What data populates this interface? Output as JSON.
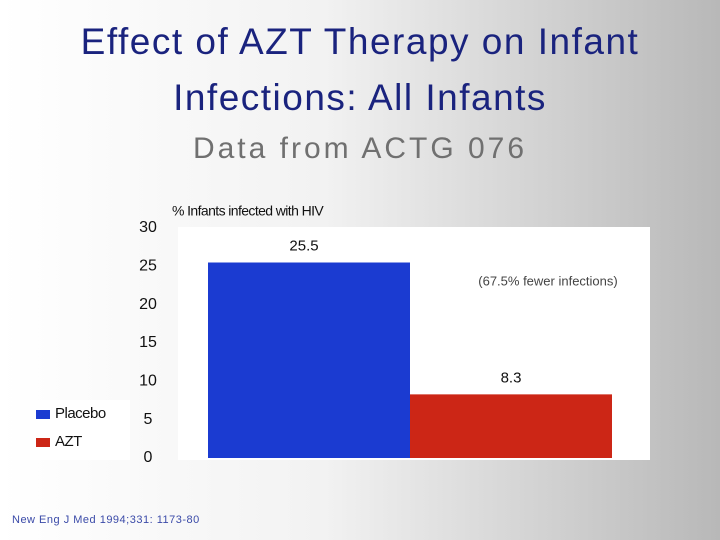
{
  "title": "Effect of AZT Therapy on Infant Infections: All Infants",
  "subtitle": "Data from ACTG 076",
  "footnote": "New Eng J Med 1994;331: 1173-80",
  "chart_data": {
    "type": "bar",
    "y_label": "% Infants infected with HIV",
    "annotation": "(67.5% fewer infections)",
    "series": [
      {
        "name": "Placebo",
        "color": "#1b3bd1",
        "values": [
          25.5
        ]
      },
      {
        "name": "AZT",
        "color": "#cc2616",
        "values": [
          8.3
        ]
      }
    ],
    "ylim": [
      0,
      30
    ],
    "yticks": [
      0,
      5,
      10,
      15,
      20,
      25,
      30
    ],
    "legend": "left"
  }
}
